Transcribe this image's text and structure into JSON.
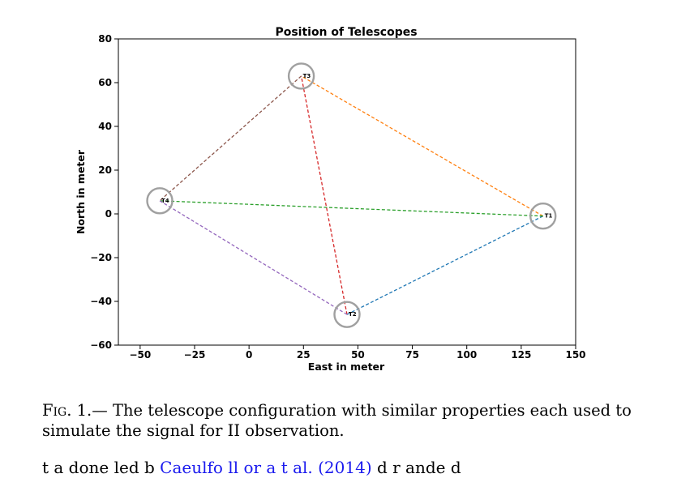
{
  "chart_data": {
    "type": "scatter",
    "title": "Position of Telescopes",
    "xlabel": "East in meter",
    "ylabel": "North in meter",
    "xlim": [
      -60,
      150
    ],
    "ylim": [
      -60,
      80
    ],
    "xticks": [
      "−50",
      "−25",
      "0",
      "25",
      "50",
      "75",
      "100",
      "125",
      "150"
    ],
    "yticks": [
      "80",
      "60",
      "40",
      "20",
      "0",
      "−20",
      "−40",
      "−60"
    ],
    "xtick_values": [
      -50,
      -25,
      0,
      25,
      50,
      75,
      100,
      125,
      150
    ],
    "ytick_values": [
      80,
      60,
      40,
      20,
      0,
      -20,
      -40,
      -60
    ],
    "grid": false,
    "points": [
      {
        "label": "T1",
        "x": 135,
        "y": -1
      },
      {
        "label": "T2",
        "x": 45,
        "y": -46
      },
      {
        "label": "T3",
        "x": 24,
        "y": 63
      },
      {
        "label": "T4",
        "x": -41,
        "y": 6
      }
    ],
    "baselines": [
      {
        "from": "T1",
        "to": "T2",
        "color": "#1f77b4"
      },
      {
        "from": "T1",
        "to": "T3",
        "color": "#ff7f0e"
      },
      {
        "from": "T1",
        "to": "T4",
        "color": "#2ca02c"
      },
      {
        "from": "T2",
        "to": "T3",
        "color": "#d62728"
      },
      {
        "from": "T2",
        "to": "T4",
        "color": "#9467bd"
      },
      {
        "from": "T3",
        "to": "T4",
        "color": "#8c564b"
      }
    ],
    "marker_color": "#a0a0a0"
  },
  "caption": {
    "prefix": "Fig. 1.—",
    "text": " The telescope configuration with similar properties each used to simulate the signal for II observation."
  },
  "body_text": {
    "before": "t a done led b ",
    "citation": "Caeulfo ll or a t al. (2014)",
    "after": " d r ande d"
  }
}
